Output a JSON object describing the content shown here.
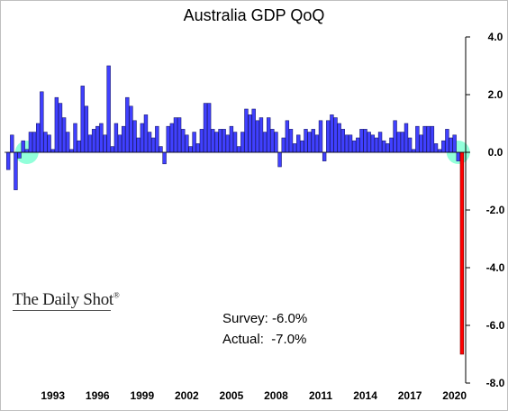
{
  "chart_data": {
    "type": "bar",
    "title": "Australia GDP QoQ",
    "ylim": [
      -8.0,
      4.0
    ],
    "yticks": [
      "4.0",
      "2.0",
      "0.0",
      "-2.0",
      "-4.0",
      "-6.0",
      "-8.0"
    ],
    "ytick_values": [
      4,
      2,
      0,
      -2,
      -4,
      -6,
      -8
    ],
    "xticks": [
      "1993",
      "1996",
      "1999",
      "2002",
      "2005",
      "2008",
      "2011",
      "2014",
      "2017",
      "2020"
    ],
    "x_start_year": 1990.0,
    "quarters_per_year": 4,
    "grid": false,
    "values": [
      -0.6,
      0.6,
      -1.3,
      -0.2,
      0.4,
      0.1,
      0.7,
      0.7,
      1.0,
      2.1,
      0.7,
      0.6,
      0.1,
      1.9,
      1.7,
      1.2,
      0.7,
      0.1,
      1.0,
      0.4,
      2.3,
      1.6,
      0.6,
      0.8,
      0.9,
      1.0,
      0.6,
      3.0,
      0.2,
      1.0,
      0.6,
      0.9,
      1.9,
      1.6,
      1.1,
      0.5,
      1.0,
      1.3,
      0.7,
      0.5,
      0.9,
      0.2,
      -0.4,
      0.9,
      1.0,
      1.2,
      1.2,
      0.8,
      0.6,
      0.2,
      0.7,
      0.3,
      0.8,
      1.7,
      1.7,
      0.8,
      0.7,
      0.8,
      0.8,
      0.6,
      0.9,
      0.7,
      0.2,
      0.7,
      1.5,
      1.3,
      1.5,
      1.1,
      1.2,
      0.7,
      1.2,
      0.8,
      0.7,
      -0.5,
      0.5,
      1.1,
      0.8,
      0.3,
      0.6,
      0.4,
      0.8,
      0.7,
      0.8,
      0.6,
      1.1,
      -0.3,
      1.1,
      1.3,
      1.2,
      1.0,
      0.8,
      0.6,
      0.6,
      0.4,
      0.5,
      0.8,
      0.8,
      0.7,
      0.6,
      0.5,
      0.7,
      0.4,
      0.3,
      0.5,
      1.1,
      0.7,
      0.7,
      1.0,
      0.5,
      0.1,
      0.9,
      0.6,
      0.9,
      0.9,
      0.9,
      0.3,
      0.1,
      0.4,
      0.8,
      0.5,
      0.6,
      -0.3,
      -7.0
    ],
    "highlight_index": 122,
    "circle_indices": [
      5,
      121
    ],
    "colors": {
      "bar": "#4040ff",
      "bar_outline": "#1a1a6e",
      "highlight": "#ff0000",
      "highlight_outline": "#7a0000",
      "circle": "#7fffd4",
      "axis": "#000000"
    }
  },
  "branding": {
    "logo_text": "The Daily Shot",
    "logo_mark": "®"
  },
  "annotations": {
    "survey": "Survey: -6.0%",
    "actual": "Actual:  -7.0%"
  }
}
